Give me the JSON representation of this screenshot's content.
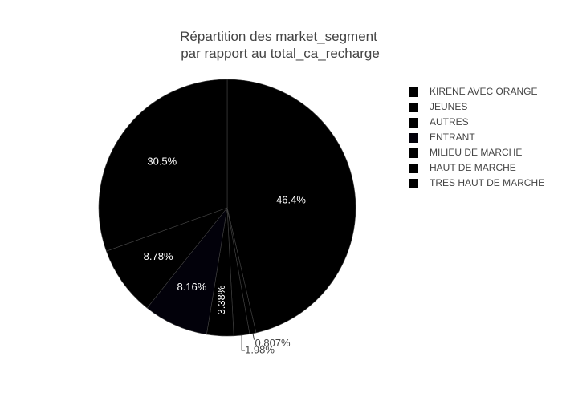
{
  "chart_data": {
    "type": "pie",
    "title_lines": [
      "Répartition des market_segment",
      "par rapport au total_ca_recharge"
    ],
    "categories": [
      "KIRENE AVEC ORANGE",
      "JEUNES",
      "AUTRES",
      "ENTRANT",
      "MILIEU DE MARCHE",
      "HAUT DE MARCHE",
      "TRES HAUT DE MARCHE"
    ],
    "values": [
      46.4,
      30.5,
      8.78,
      8.16,
      3.38,
      1.98,
      0.807
    ],
    "value_labels": [
      "46.4%",
      "30.5%",
      "8.78%",
      "8.16%",
      "3.38%",
      "1.98%",
      "0.807%"
    ],
    "unit": "%",
    "slice_colors": [
      "#000000",
      "#000000",
      "#000000",
      "#02010a",
      "#000000",
      "#000000",
      "#000000"
    ],
    "slice_order": [
      0,
      6,
      5,
      4,
      3,
      2,
      1
    ],
    "direction": "clockwise",
    "start": "12 o'clock",
    "legend_position": "right",
    "slice_border_color": "#444444",
    "label_color_inside": "#ffffff",
    "label_color_outside": "#444444"
  }
}
